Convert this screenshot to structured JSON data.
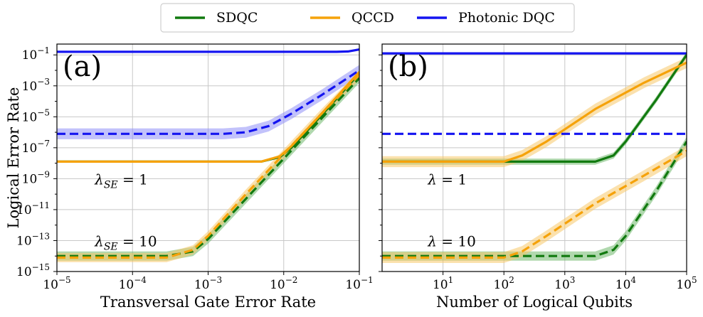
{
  "chart_data": [
    {
      "type": "line",
      "panel_label": "(a)",
      "xlabel": "Transversal Gate Error Rate",
      "ylabel": "Logical Error Rate",
      "x_scale": "log",
      "y_scale": "log",
      "xlim_exp": [
        -5,
        -1
      ],
      "ylim_exp": [
        -15,
        -0.3
      ],
      "x_tick_labels": [
        {
          "exp": -5,
          "base": "10",
          "sup": "−5"
        },
        {
          "exp": -4,
          "base": "10",
          "sup": "−4"
        },
        {
          "exp": -3,
          "base": "10",
          "sup": "−3"
        },
        {
          "exp": -2,
          "base": "10",
          "sup": "−2"
        },
        {
          "exp": -1,
          "base": "10",
          "sup": "−1"
        }
      ],
      "y_tick_labels": [
        {
          "exp": -1,
          "base": "10",
          "sup": "−1"
        },
        {
          "exp": -3,
          "base": "10",
          "sup": "−3"
        },
        {
          "exp": -5,
          "base": "10",
          "sup": "−5"
        },
        {
          "exp": -7,
          "base": "10",
          "sup": "−7"
        },
        {
          "exp": -9,
          "base": "10",
          "sup": "−9"
        },
        {
          "exp": -11,
          "base": "10",
          "sup": "−11"
        },
        {
          "exp": -13,
          "base": "10",
          "sup": "−13"
        },
        {
          "exp": -15,
          "base": "10",
          "sup": "−15"
        }
      ],
      "annotations": [
        {
          "text": "λSE = 1",
          "x_exp": -4.5,
          "y_exp": -9
        },
        {
          "text": "λSE = 10",
          "x_exp": -4.5,
          "y_exp": -13
        }
      ],
      "series": [
        {
          "name": "Photonic DQC",
          "style": "solid",
          "log_x": [
            -5,
            -1.3,
            -1.15,
            -1
          ],
          "log_y": [
            -0.8,
            -0.8,
            -0.78,
            -0.65
          ]
        },
        {
          "name": "Photonic DQC",
          "style": "dashed",
          "log_x": [
            -5,
            -2.8,
            -2.5,
            -2.2,
            -1.9,
            -1.5,
            -1
          ],
          "log_y": [
            -6.1,
            -6.1,
            -6.0,
            -5.6,
            -4.8,
            -3.6,
            -2.0
          ],
          "band": 0.35
        },
        {
          "name": "SDQC",
          "style": "solid",
          "log_x": [
            -5,
            -2.3,
            -2.05,
            -1.9,
            -1.5,
            -1
          ],
          "log_y": [
            -7.9,
            -7.9,
            -7.6,
            -7.0,
            -4.9,
            -2.2
          ]
        },
        {
          "name": "QCCD",
          "style": "solid",
          "log_x": [
            -5,
            -2.3,
            -2.05,
            -1.9,
            -1.5,
            -1
          ],
          "log_y": [
            -7.9,
            -7.9,
            -7.55,
            -6.9,
            -4.8,
            -2.1
          ]
        },
        {
          "name": "SDQC",
          "style": "dashed",
          "log_x": [
            -5,
            -3.55,
            -3.2,
            -3.0,
            -2.5,
            -2.0,
            -1.5,
            -1
          ],
          "log_y": [
            -14.0,
            -14.0,
            -13.7,
            -12.9,
            -10.3,
            -7.7,
            -5.1,
            -2.5
          ],
          "band": 0.3
        },
        {
          "name": "QCCD",
          "style": "dashed",
          "log_x": [
            -5,
            -3.55,
            -3.2,
            -3.0,
            -2.5,
            -2.0,
            -1.5,
            -1
          ],
          "log_y": [
            -14.1,
            -14.1,
            -13.6,
            -12.7,
            -10.0,
            -7.4,
            -4.8,
            -2.3
          ],
          "band": 0.3
        }
      ]
    },
    {
      "type": "line",
      "panel_label": "(b)",
      "xlabel": "Number of Logical Qubits",
      "ylabel": "",
      "x_scale": "log",
      "y_scale": "log",
      "xlim_exp": [
        0,
        5
      ],
      "ylim_exp": [
        -15,
        -0.3
      ],
      "x_tick_labels": [
        {
          "exp": 1,
          "base": "10",
          "sup": "1"
        },
        {
          "exp": 2,
          "base": "10",
          "sup": "2"
        },
        {
          "exp": 3,
          "base": "10",
          "sup": "3"
        },
        {
          "exp": 4,
          "base": "10",
          "sup": "4"
        },
        {
          "exp": 5,
          "base": "10",
          "sup": "5"
        }
      ],
      "annotations": [
        {
          "text": "λ = 1",
          "x_exp": 0.75,
          "y_exp": -9
        },
        {
          "text": "λ = 10",
          "x_exp": 0.75,
          "y_exp": -13
        }
      ],
      "series": [
        {
          "name": "Photonic DQC",
          "style": "solid",
          "log_x": [
            0,
            5
          ],
          "log_y": [
            -0.9,
            -0.9
          ]
        },
        {
          "name": "Photonic DQC",
          "style": "dashed",
          "log_x": [
            0,
            5
          ],
          "log_y": [
            -6.1,
            -6.1
          ]
        },
        {
          "name": "SDQC",
          "style": "solid",
          "log_x": [
            0,
            3.5,
            3.8,
            4.0,
            4.5,
            5
          ],
          "log_y": [
            -7.9,
            -7.9,
            -7.5,
            -6.6,
            -3.9,
            -1.0
          ],
          "band": 0.2
        },
        {
          "name": "QCCD",
          "style": "solid",
          "log_x": [
            0,
            2.0,
            2.3,
            2.7,
            3.5,
            4.3,
            5
          ],
          "log_y": [
            -7.9,
            -7.9,
            -7.5,
            -6.6,
            -4.5,
            -2.8,
            -1.5
          ],
          "band": 0.35
        },
        {
          "name": "SDQC",
          "style": "dashed",
          "log_x": [
            0,
            3.5,
            3.8,
            4.0,
            4.5,
            5
          ],
          "log_y": [
            -14.0,
            -14.0,
            -13.6,
            -12.7,
            -9.8,
            -6.6
          ],
          "band": 0.3
        },
        {
          "name": "QCCD",
          "style": "dashed",
          "log_x": [
            0,
            2.0,
            2.3,
            2.7,
            3.5,
            4.3,
            5
          ],
          "log_y": [
            -14.1,
            -14.1,
            -13.7,
            -12.7,
            -10.6,
            -8.8,
            -7.2
          ],
          "band": 0.35
        }
      ]
    }
  ],
  "legend": {
    "placement": "top-center",
    "entries": [
      {
        "name": "SDQC",
        "color": "#117a0f"
      },
      {
        "name": "QCCD",
        "color": "#f5a20a"
      },
      {
        "name": "Photonic DQC",
        "color": "#1414f0"
      }
    ]
  },
  "colors": {
    "SDQC": "#117a0f",
    "QCCD": "#f5a20a",
    "Photonic DQC": "#1414f0",
    "SDQC_band": "#6fb86b",
    "QCCD_band": "#f7c86a",
    "Photonic DQC_band": "#8f8ff7"
  }
}
